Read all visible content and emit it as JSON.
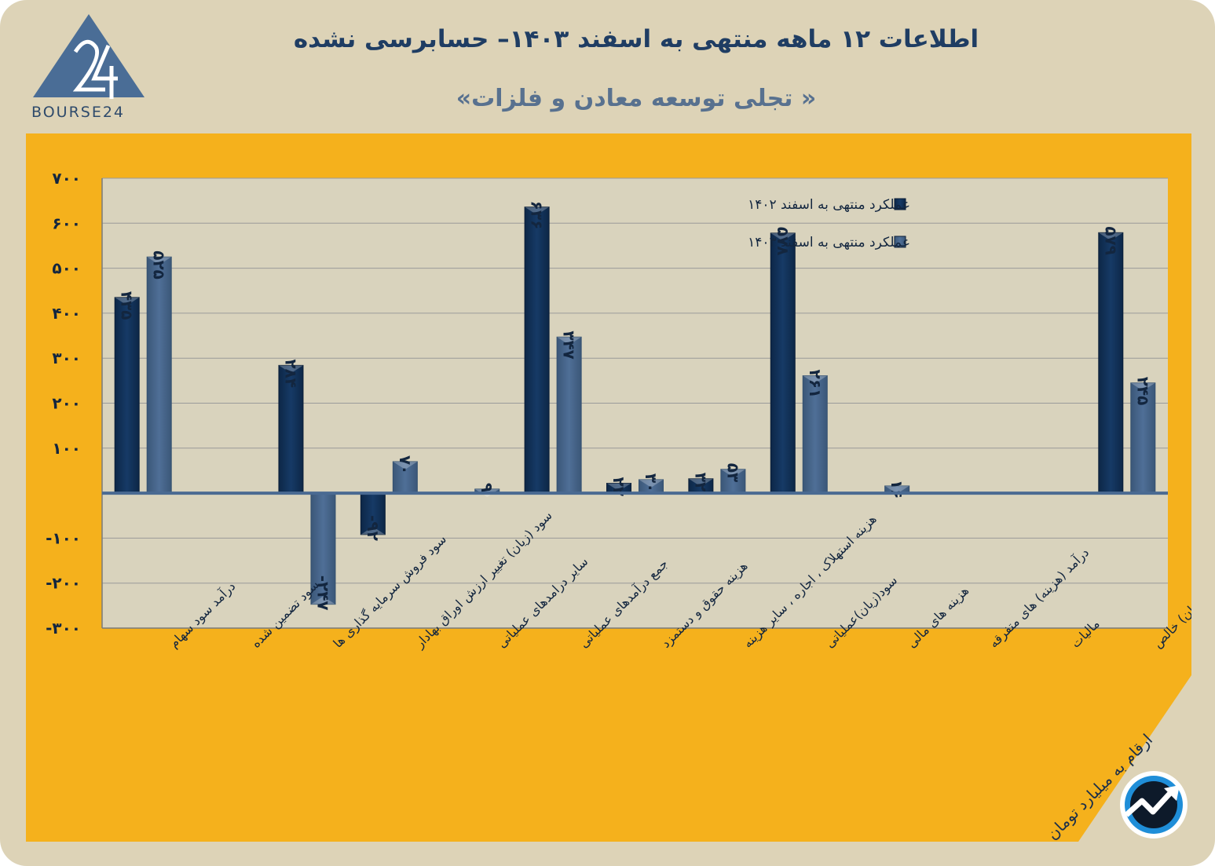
{
  "header": {
    "title": "اطلاعات ۱۲ ماهه منتهی به اسفند ۱۴۰۳– حسابرسی نشده",
    "subtitle": "« تجلی توسعه معادن و فلزات»"
  },
  "logo": {
    "text": "BOURSE24",
    "icon": "bourse24-logo-icon"
  },
  "footer": {
    "units_note": "ارقام به میلیارد تومان",
    "badge_icon": "trend-arrow-icon"
  },
  "colors": {
    "frame": "#ddd3b7",
    "panel": "#f5b11c",
    "plot_bg": "#d9d3bd",
    "series_1402": "#163a66",
    "series_1403": "#4f6f97",
    "grid": "#9a9a9a",
    "zero_line": "#4a6a92",
    "text": "#13263f"
  },
  "chart_data": {
    "type": "bar",
    "title": "اطلاعات ۱۲ ماهه منتهی به اسفند ۱۴۰۳– حسابرسی نشده",
    "ylabel": "ارقام به میلیارد تومان",
    "ylim": [
      -300,
      700
    ],
    "yticks": [
      {
        "value": 700,
        "label": "۷۰۰"
      },
      {
        "value": 600,
        "label": "۶۰۰"
      },
      {
        "value": 500,
        "label": "۵۰۰"
      },
      {
        "value": 400,
        "label": "۴۰۰"
      },
      {
        "value": 300,
        "label": "۳۰۰"
      },
      {
        "value": 200,
        "label": "۲۰۰"
      },
      {
        "value": 100,
        "label": "۱۰۰"
      },
      {
        "value": -100,
        "label": "-۱۰۰"
      },
      {
        "value": -200,
        "label": "-۲۰۰"
      },
      {
        "value": -300,
        "label": "-۳۰۰"
      }
    ],
    "grid": true,
    "legend_position": "top-right",
    "categories": [
      "درآمد سود سهام",
      "سود تضمین شده",
      "سود فروش سرمایه گذاری ها",
      "سود (زیان) تغییر ارزش اوراق بهادار",
      "سایر درامدهای عملیاتی",
      "جمع درآمدهای عملیاتی",
      "هزینه حقوق و دستمزد",
      "هزینه استهلاک ، اجاره ، سایر هزینه",
      "سود(زیان)عملیاتی",
      "هزینه های مالی",
      "درآمد (هزینه) های متفرقه",
      "مالیات",
      "سود(زیان) خالص"
    ],
    "series": [
      {
        "name": "عملکرد منتهی به اسفند ۱۴۰۲",
        "values": [
          435,
          0,
          284,
          -92,
          0,
          636,
          22,
          32,
          578,
          0,
          0,
          0,
          579
        ],
        "labels": [
          "۴۳۵",
          "",
          "۲۸۴",
          "-۹۲",
          "",
          "۶۳۶",
          "۲۲",
          "۳۲",
          "۵۷۸",
          "",
          "",
          "",
          "۵۷۹"
        ]
      },
      {
        "name": "عملکرد منتهی به اسفند ۱۴۰۳",
        "values": [
          525,
          0,
          -247,
          70,
          9,
          347,
          30,
          53,
          261,
          16,
          0,
          0,
          245
        ],
        "labels": [
          "۵۲۵",
          "",
          "-۲۴۷",
          "۷۰",
          "۹",
          "۳۴۷",
          "۳۰",
          "۵۳",
          "۲۶۱",
          "۱۶",
          "",
          "",
          "۲۴۵"
        ]
      }
    ]
  }
}
